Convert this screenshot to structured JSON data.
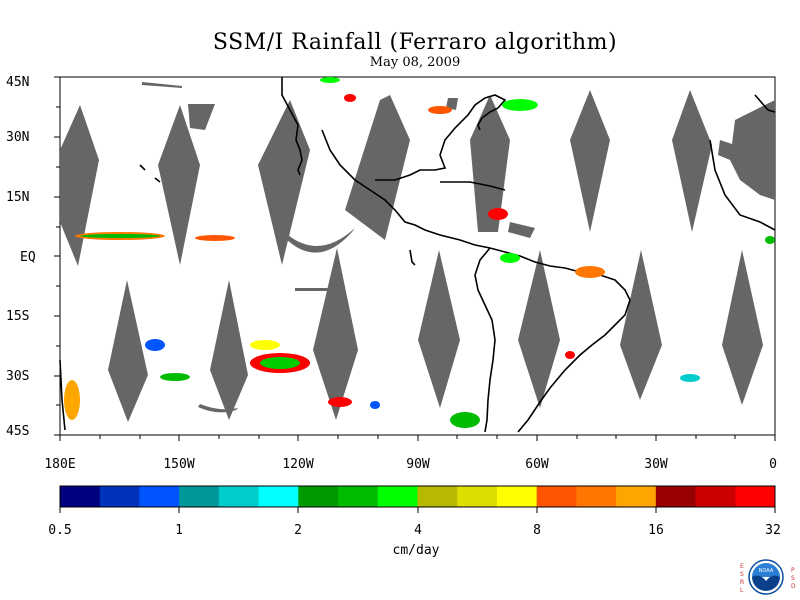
{
  "title": "SSM/I Rainfall (Ferraro algorithm)",
  "subtitle": "May 08, 2009",
  "lat_labels": [
    "45N",
    "30N",
    "15N",
    "EQ",
    "15S",
    "30S",
    "45S"
  ],
  "lon_labels": [
    "180E",
    "150W",
    "120W",
    "90W",
    "60W",
    "30W",
    "0"
  ],
  "colorbar": {
    "labels": [
      "0.5",
      "1",
      "2",
      "4",
      "8",
      "16",
      "32"
    ],
    "units": "cm/day",
    "colors": [
      "#000080",
      "#0033bb",
      "#0055ff",
      "#009999",
      "#00cccc",
      "#00ffff",
      "#009900",
      "#00bb00",
      "#00ff00",
      "#b8b800",
      "#dddd00",
      "#ffff00",
      "#ff5500",
      "#ff7700",
      "#ffa500",
      "#990000",
      "#cc0000",
      "#ff0000"
    ]
  },
  "logo": {
    "left_letters": "ESRL",
    "right_letters": "PSD",
    "center_text": "NOAA"
  },
  "colors": {
    "swath_gap": "#666666",
    "coastline": "#000000"
  }
}
